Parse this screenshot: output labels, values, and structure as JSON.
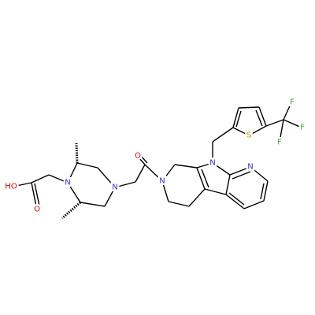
{
  "atoms": [
    {
      "label": "HO"
    },
    {
      "label": "O"
    },
    {
      "label": "N"
    },
    {
      "label": "N"
    },
    {
      "label": "O"
    },
    {
      "label": "N"
    },
    {
      "label": "N"
    },
    {
      "label": "N"
    },
    {
      "label": "S"
    },
    {
      "label": "F"
    },
    {
      "label": "F"
    },
    {
      "label": "F"
    }
  ]
}
